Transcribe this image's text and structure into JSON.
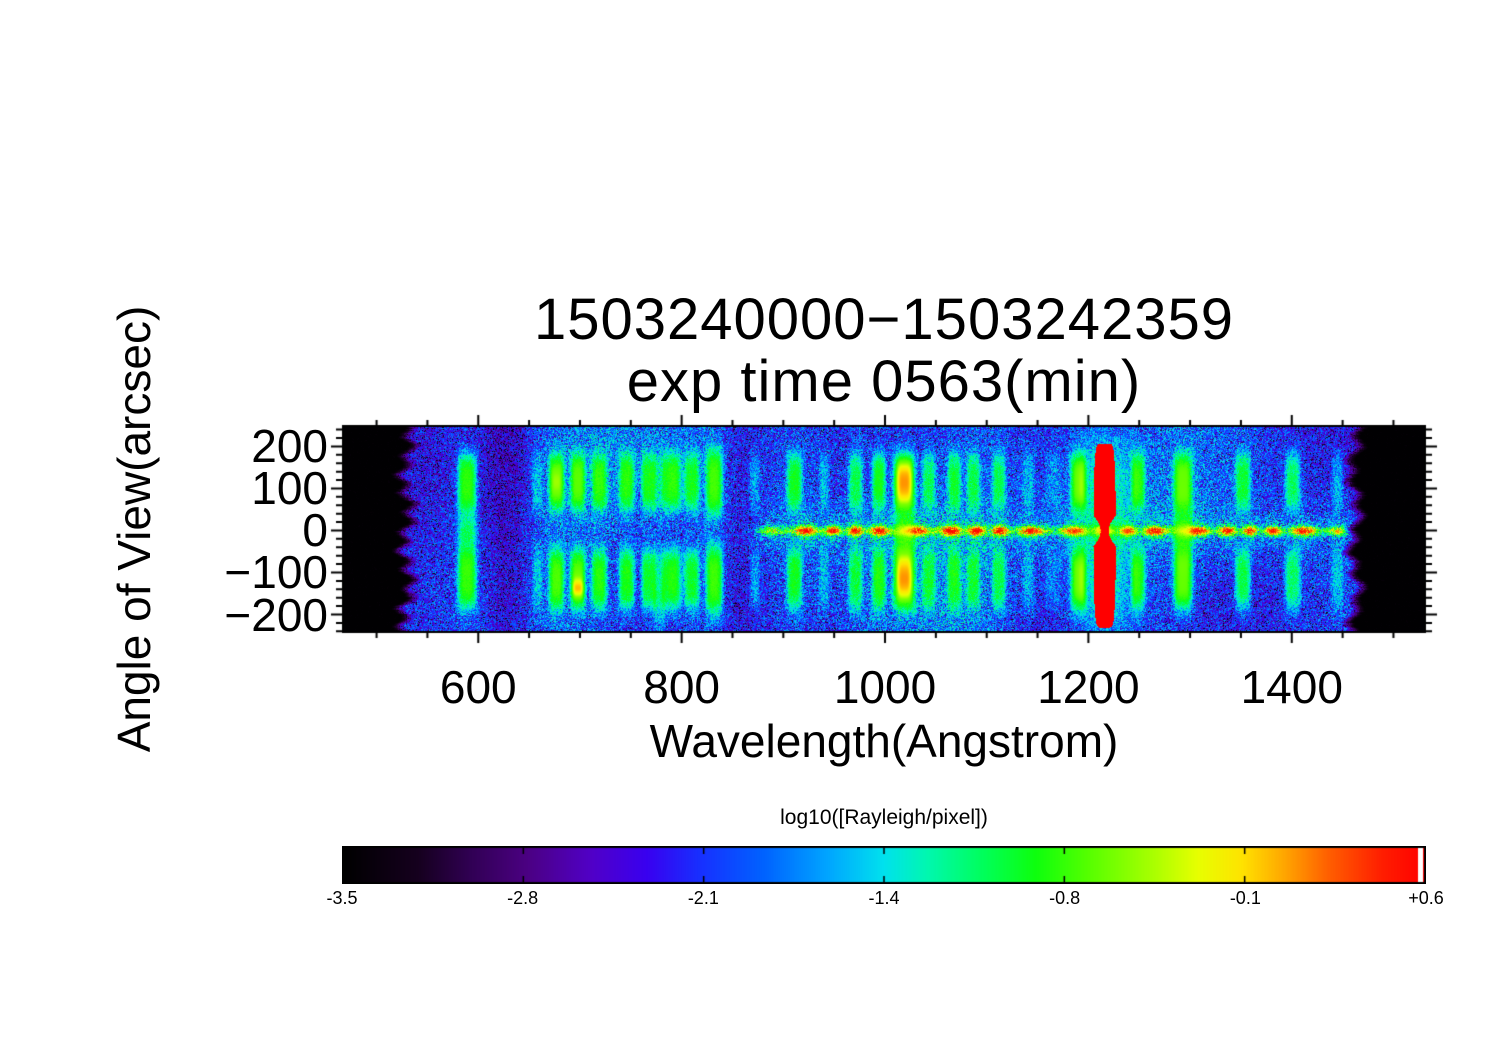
{
  "title": {
    "line1": "1503240000−1503242359",
    "line2": "exp time 0563(min)"
  },
  "axes": {
    "x": {
      "title": "Wavelength(Angstrom)",
      "major_ticks": [
        {
          "value": 600,
          "label": "600"
        },
        {
          "value": 800,
          "label": "800"
        },
        {
          "value": 1000,
          "label": "1000"
        },
        {
          "value": 1200,
          "label": "1200"
        },
        {
          "value": 1400,
          "label": "1400"
        }
      ],
      "minor_tick_step": 50
    },
    "y": {
      "title": "Angle of View(arcsec)",
      "major_ticks": [
        {
          "value": 200,
          "label": "200"
        },
        {
          "value": 100,
          "label": "100"
        },
        {
          "value": 0,
          "label": "0"
        },
        {
          "value": -100,
          "label": "−100"
        },
        {
          "value": -200,
          "label": "−200"
        }
      ],
      "minor_tick_step": 20
    }
  },
  "colorbar": {
    "title": "log10([Rayleigh/pixel])",
    "min": -3.5,
    "max": 0.6,
    "tick_labels": [
      "-3.5",
      "-2.8",
      "-2.1",
      "-1.4",
      "-0.8",
      "-0.1",
      "+0.6"
    ],
    "white_cap_at_max": true,
    "colormap_stops": [
      [
        0.0,
        "#000000"
      ],
      [
        0.07,
        "#16001f"
      ],
      [
        0.12,
        "#320056"
      ],
      [
        0.17,
        "#4b0082"
      ],
      [
        0.23,
        "#5101c8"
      ],
      [
        0.28,
        "#3a00f0"
      ],
      [
        0.33,
        "#1830ff"
      ],
      [
        0.39,
        "#0064ff"
      ],
      [
        0.45,
        "#00a8ff"
      ],
      [
        0.5,
        "#00e2ee"
      ],
      [
        0.54,
        "#00f8b0"
      ],
      [
        0.59,
        "#00ff5e"
      ],
      [
        0.64,
        "#0eff0e"
      ],
      [
        0.69,
        "#58ff00"
      ],
      [
        0.75,
        "#acff00"
      ],
      [
        0.79,
        "#e8ff00"
      ],
      [
        0.83,
        "#ffe400"
      ],
      [
        0.87,
        "#ffa600"
      ],
      [
        0.91,
        "#ff6000"
      ],
      [
        0.96,
        "#ff1e00"
      ],
      [
        1.0,
        "#ff0000"
      ]
    ]
  },
  "chart_data": {
    "type": "heatmap",
    "x_range_angstrom": [
      466,
      1532
    ],
    "y_range_arcsec": [
      -244,
      251
    ],
    "data_coverage_angstrom": [
      524,
      1468
    ],
    "background": {
      "level_norm": 0.3,
      "noise_norm": 0.24,
      "dark_speckle_fraction": 0.15
    },
    "dark_patches_angstrom": [
      627,
      860
    ],
    "lobes": {
      "upper_center_arcsec": 117,
      "lower_center_arcsec": -115,
      "half_height_arcsec": 76
    },
    "emission_bands": [
      {
        "wavelength": 589,
        "half_width": 10,
        "intensity": 0.62,
        "neck": 0.5
      },
      {
        "wavelength": 658,
        "half_width": 5,
        "intensity": 0.26
      },
      {
        "wavelength": 677,
        "half_width": 8,
        "intensity": 0.64,
        "hot_upper": 0.1
      },
      {
        "wavelength": 698,
        "half_width": 8,
        "intensity": 0.66,
        "hot_lower_dot": 0.2
      },
      {
        "wavelength": 719,
        "half_width": 8,
        "intensity": 0.6
      },
      {
        "wavelength": 746,
        "half_width": 8,
        "intensity": 0.58
      },
      {
        "wavelength": 767,
        "half_width": 7,
        "intensity": 0.55
      },
      {
        "wavelength": 778,
        "half_width": 6,
        "intensity": 0.34,
        "tail_arcsec": -210
      },
      {
        "wavelength": 791,
        "half_width": 9,
        "intensity": 0.6
      },
      {
        "wavelength": 810,
        "half_width": 8,
        "intensity": 0.55
      },
      {
        "wavelength": 832,
        "half_width": 9,
        "intensity": 0.63,
        "tall": true
      },
      {
        "wavelength": 872,
        "half_width": 5,
        "intensity": 0.24
      },
      {
        "wavelength": 911,
        "half_width": 8,
        "intensity": 0.55
      },
      {
        "wavelength": 940,
        "half_width": 5,
        "intensity": 0.24
      },
      {
        "wavelength": 971,
        "half_width": 7,
        "intensity": 0.5
      },
      {
        "wavelength": 994,
        "half_width": 7,
        "intensity": 0.57
      },
      {
        "wavelength": 1019,
        "half_width": 11,
        "intensity": 0.8,
        "hot_lobes": 0.08,
        "neck": 0.58
      },
      {
        "wavelength": 1043,
        "half_width": 7,
        "intensity": 0.48
      },
      {
        "wavelength": 1068,
        "half_width": 7,
        "intensity": 0.52
      },
      {
        "wavelength": 1087,
        "half_width": 7,
        "intensity": 0.48
      },
      {
        "wavelength": 1112,
        "half_width": 7,
        "intensity": 0.48
      },
      {
        "wavelength": 1141,
        "half_width": 6,
        "intensity": 0.24
      },
      {
        "wavelength": 1165,
        "half_width": 8,
        "intensity": 0.16
      },
      {
        "wavelength": 1190,
        "half_width": 8,
        "intensity": 0.52
      },
      {
        "wavelength": 1249,
        "half_width": 7,
        "intensity": 0.5
      },
      {
        "wavelength": 1293,
        "half_width": 10,
        "intensity": 0.68,
        "neck": 0.6
      },
      {
        "wavelength": 1352,
        "half_width": 8,
        "intensity": 0.52
      },
      {
        "wavelength": 1401,
        "half_width": 8,
        "intensity": 0.48
      },
      {
        "wavelength": 1445,
        "half_width": 6,
        "intensity": 0.26
      }
    ],
    "lyman_alpha": {
      "wavelength": 1216,
      "core_half_width_angstrom": 11,
      "pinch_half_width_angstrom": 4,
      "halo_half_width_angstrom": 20,
      "extent_arcsec": [
        208,
        -230
      ],
      "intensity": 1.0,
      "halo_intensity": 0.45
    },
    "disk_center_line": {
      "arcsec": 0,
      "wavelength_start": 860,
      "wavelength_end": 1463,
      "intensity": 0.62
    }
  }
}
